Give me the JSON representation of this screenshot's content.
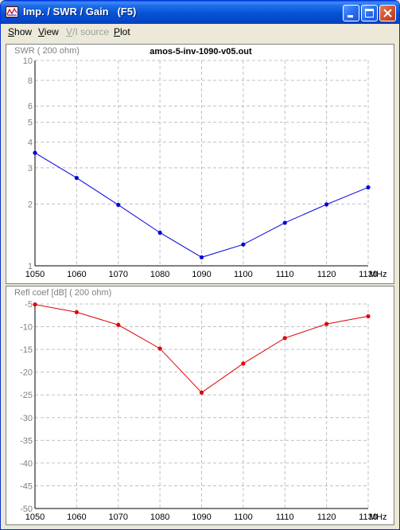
{
  "window": {
    "title": "Imp. / SWR / Gain   (F5)",
    "buttons": [
      "minimize",
      "maximize",
      "close"
    ]
  },
  "menu": [
    {
      "label": "Show",
      "underline": "S",
      "enabled": true
    },
    {
      "label": "View",
      "underline": "V",
      "enabled": true
    },
    {
      "label": "V/I source",
      "underline": "V",
      "enabled": false
    },
    {
      "label": "Plot",
      "underline": "P",
      "enabled": true
    }
  ],
  "colors": {
    "swr_line": "#0000e0",
    "refl_line": "#e00000",
    "grid": "#c0c0c0",
    "titlebar": "#0553d6"
  },
  "chart_data": [
    {
      "type": "line",
      "title": "amos-5-inv-1090-v05.out",
      "ylabel": "SWR ( 200 ohm)",
      "xlabel": "MHz",
      "yscale": "log",
      "ylim": [
        1,
        10
      ],
      "xlim": [
        1050,
        1130
      ],
      "x": [
        1050,
        1060,
        1070,
        1080,
        1090,
        1100,
        1110,
        1120,
        1130
      ],
      "x_ticks": [
        "1050",
        "1060",
        "1070",
        "1080",
        "1090",
        "1100",
        "1110",
        "1120",
        "1130"
      ],
      "x_unit": "MHz",
      "y_ticks": [
        1,
        2,
        3,
        4,
        5,
        6,
        8,
        10
      ],
      "y_tick_labels": [
        "1",
        "2",
        "3",
        "4",
        "5",
        "6",
        "8",
        "10"
      ],
      "grid": true,
      "series": [
        {
          "values": [
            3.55,
            2.68,
            1.98,
            1.45,
            1.1,
            1.27,
            1.62,
            1.99,
            2.41
          ]
        }
      ]
    },
    {
      "type": "line",
      "ylabel": "Refl coef [dB] ( 200 ohm)",
      "xlabel": "MHz",
      "ylim": [
        -50,
        -5
      ],
      "xlim": [
        1050,
        1130
      ],
      "x": [
        1050,
        1060,
        1070,
        1080,
        1090,
        1100,
        1110,
        1120,
        1130
      ],
      "x_ticks": [
        "1050",
        "1060",
        "1070",
        "1080",
        "1090",
        "1100",
        "1110",
        "1120",
        "1130"
      ],
      "x_unit": "MHz",
      "y_ticks": [
        -5,
        -10,
        -15,
        -20,
        -25,
        -30,
        -35,
        -40,
        -45,
        -50
      ],
      "y_tick_labels": [
        "-5",
        "-10",
        "-15",
        "-20",
        "-25",
        "-30",
        "-35",
        "-40",
        "-45",
        "-50"
      ],
      "grid": true,
      "series": [
        {
          "values": [
            -5.1,
            -6.8,
            -9.6,
            -14.8,
            -24.5,
            -18.1,
            -12.5,
            -9.4,
            -7.7
          ]
        }
      ]
    }
  ]
}
